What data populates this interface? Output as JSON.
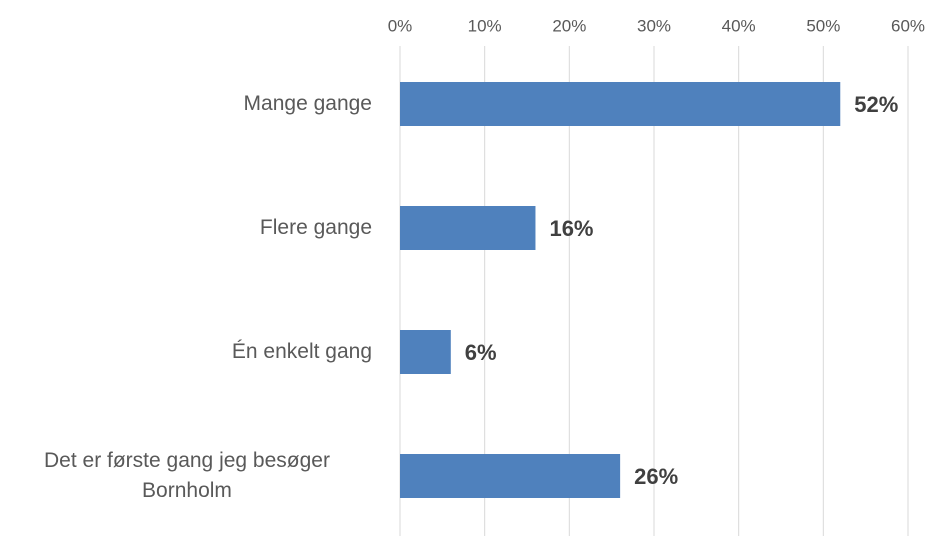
{
  "chart_data": {
    "type": "bar",
    "orientation": "horizontal",
    "categories": [
      "Mange gange",
      "Flere gange",
      "Én enkelt gang",
      "Det er første gang jeg besøger Bornholm"
    ],
    "values": [
      52,
      16,
      6,
      26
    ],
    "value_labels": [
      "52%",
      "16%",
      "6%",
      "26%"
    ],
    "color": "#4f81bd",
    "xlim": [
      0,
      60
    ],
    "xticks": [
      {
        "value": 0,
        "label": "0%"
      },
      {
        "value": 10,
        "label": "10%"
      },
      {
        "value": 20,
        "label": "20%"
      },
      {
        "value": 30,
        "label": "30%"
      },
      {
        "value": 40,
        "label": "40%"
      },
      {
        "value": 50,
        "label": "50%"
      },
      {
        "value": 60,
        "label": "60%"
      }
    ],
    "grid": true
  }
}
